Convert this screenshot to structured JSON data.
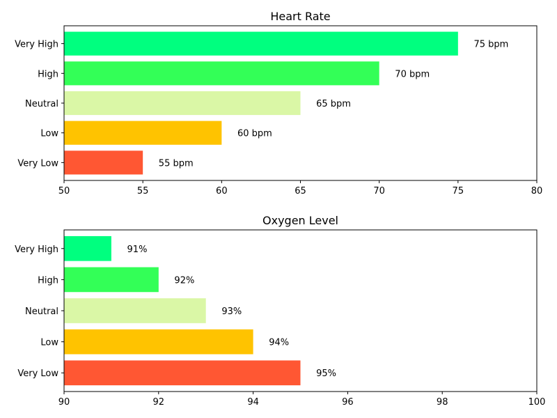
{
  "chart_data": [
    {
      "type": "bar",
      "orientation": "horizontal",
      "title": "Heart Rate",
      "xlabel": "",
      "ylabel": "",
      "categories": [
        "Very Low",
        "Low",
        "Neutral",
        "High",
        "Very High"
      ],
      "values": [
        55,
        60,
        65,
        70,
        75
      ],
      "data_labels": [
        "55 bpm",
        "60 bpm",
        "65 bpm",
        "70 bpm",
        "75 bpm"
      ],
      "colors": [
        "#ff5733",
        "#ffc300",
        "#daf7a6",
        "#33ff57",
        "#00ff7f"
      ],
      "xlim": [
        50,
        80
      ],
      "xticks": [
        50,
        55,
        60,
        65,
        70,
        75,
        80
      ],
      "grid": false
    },
    {
      "type": "bar",
      "orientation": "horizontal",
      "title": "Oxygen Level",
      "xlabel": "",
      "ylabel": "",
      "categories": [
        "Very Low",
        "Low",
        "Neutral",
        "High",
        "Very High"
      ],
      "values": [
        95,
        94,
        93,
        92,
        91
      ],
      "data_labels": [
        "95%",
        "94%",
        "93%",
        "92%",
        "91%"
      ],
      "colors": [
        "#ff5733",
        "#ffc300",
        "#daf7a6",
        "#33ff57",
        "#00ff7f"
      ],
      "xlim": [
        90,
        100
      ],
      "xticks": [
        90,
        92,
        94,
        96,
        98,
        100
      ],
      "grid": false
    }
  ]
}
